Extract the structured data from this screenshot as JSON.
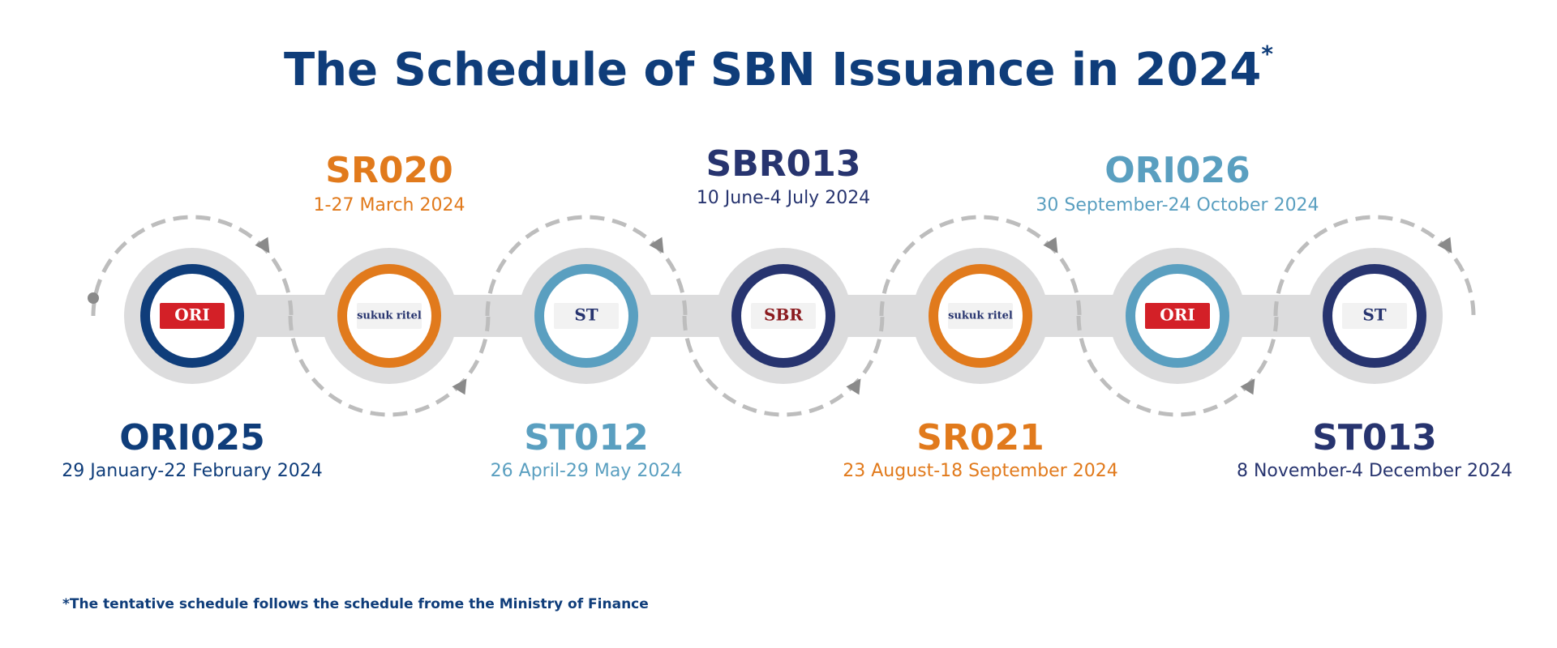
{
  "title": "The Schedule of SBN Issuance in 2024",
  "title_mark": "*",
  "items": [
    {
      "name": "ORI025",
      "dates": "29 January-22 February 2024",
      "color": "#0f3d7a",
      "position": "bottom",
      "logo": "ORI"
    },
    {
      "name": "SR020",
      "dates": "1-27 March 2024",
      "color": "#e17a1c",
      "position": "top",
      "logo": "sukuk ritel"
    },
    {
      "name": "ST012",
      "dates": "26 April-29 May 2024",
      "color": "#5a9fc0",
      "position": "bottom",
      "logo": "ST"
    },
    {
      "name": "SBR013",
      "dates": "10 June-4 July 2024",
      "color": "#27346f",
      "position": "top",
      "logo": "SBR"
    },
    {
      "name": "SR021",
      "dates": "23 August-18 September 2024",
      "color": "#e17a1c",
      "position": "bottom",
      "logo": "sukuk ritel"
    },
    {
      "name": "ORI026",
      "dates": "30 September-24 October 2024",
      "color": "#5a9fc0",
      "position": "top",
      "logo": "ORI"
    },
    {
      "name": "ST013",
      "dates": "8 November-4 December 2024",
      "color": "#27346f",
      "position": "bottom",
      "logo": "ST"
    }
  ],
  "footnote": "*The tentative schedule follows the schedule frome the Ministry of Finance"
}
